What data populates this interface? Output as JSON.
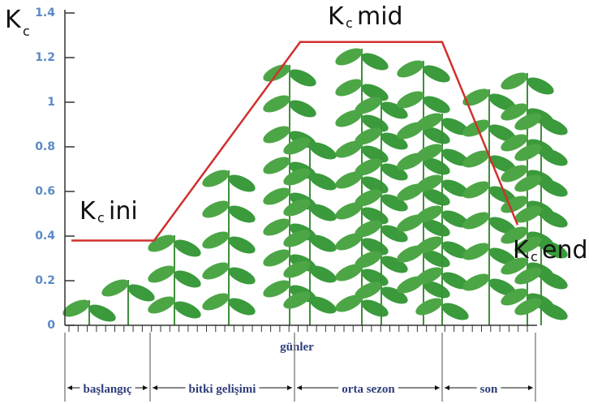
{
  "chart_data": {
    "type": "line",
    "y_label": {
      "main": "K",
      "sub": "c"
    },
    "x_label": "günler",
    "categories": [
      null,
      null,
      null,
      null,
      null
    ],
    "series": [
      {
        "name": null,
        "color": "#d0312d",
        "values": [
          0.38,
          0.38,
          1.27,
          1.27,
          0.45
        ]
      }
    ],
    "ylim": [
      0,
      1.4
    ],
    "yticks": [
      0,
      0.2,
      0.4,
      0.6,
      0.8,
      1,
      1.2,
      1.4
    ],
    "annotations": [
      {
        "main": "K",
        "sub": "c",
        "text": "ini"
      },
      {
        "main": "K",
        "sub": "c",
        "text": "mid"
      },
      {
        "main": "K",
        "sub": "c",
        "text": "end"
      }
    ],
    "stages": [
      "başlangıç",
      "bitki gelişimi",
      "orta sezon",
      "son"
    ]
  }
}
